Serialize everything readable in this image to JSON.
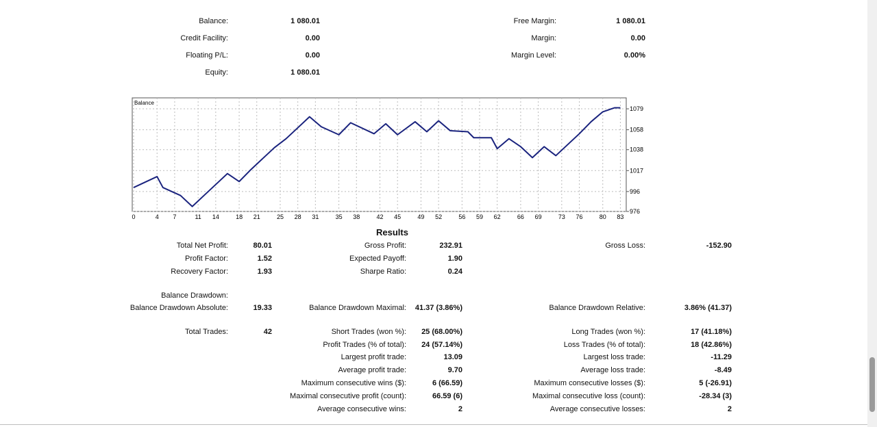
{
  "account": {
    "left": [
      {
        "label": "Balance:",
        "value": "1 080.01"
      },
      {
        "label": "Credit Facility:",
        "value": "0.00"
      },
      {
        "label": "Floating P/L:",
        "value": "0.00"
      },
      {
        "label": "Equity:",
        "value": "1 080.01"
      }
    ],
    "right": [
      {
        "label": "Free Margin:",
        "value": "1 080.01"
      },
      {
        "label": "Margin:",
        "value": "0.00"
      },
      {
        "label": "Margin Level:",
        "value": "0.00%"
      }
    ]
  },
  "chart_data": {
    "type": "line",
    "x": [
      0,
      4,
      5,
      8,
      10,
      12,
      14,
      16,
      18,
      20,
      22,
      24,
      26,
      28,
      30,
      32,
      35,
      37,
      41,
      43,
      45,
      48,
      50,
      52,
      54,
      57,
      58,
      61,
      62,
      64,
      66,
      68,
      70,
      72,
      74,
      76,
      78,
      80,
      82,
      83
    ],
    "series": [
      {
        "name": "Balance",
        "color": "#1a237e",
        "values": [
          1000,
          1011,
          1000,
          992,
          981,
          992,
          1003,
          1014,
          1006,
          1018,
          1029,
          1040,
          1049,
          1060,
          1071,
          1061,
          1053,
          1065,
          1054,
          1064,
          1053,
          1066,
          1056,
          1067,
          1057,
          1056,
          1050,
          1050,
          1039,
          1049,
          1041,
          1030,
          1041,
          1032,
          1043,
          1054,
          1066,
          1076,
          1080,
          1080
        ]
      }
    ],
    "xlim": [
      0,
      84
    ],
    "xticks": [
      0,
      4,
      7,
      11,
      14,
      18,
      21,
      25,
      28,
      31,
      35,
      38,
      42,
      45,
      49,
      52,
      56,
      59,
      62,
      66,
      69,
      73,
      76,
      80,
      83
    ],
    "ylim": [
      976,
      1090
    ],
    "yticks": [
      976,
      996,
      1017,
      1038,
      1058,
      1079
    ],
    "grid": true
  },
  "results": {
    "title": "Results",
    "rows": [
      {
        "left": {
          "label": "Total Net Profit:",
          "value": "80.01"
        },
        "middle": {
          "label": "Gross Profit:",
          "value": "232.91"
        },
        "right": {
          "label": "Gross Loss:",
          "value": "-152.90"
        }
      },
      {
        "left": {
          "label": "Profit Factor:",
          "value": "1.52"
        },
        "middle": {
          "label": "Expected Payoff:",
          "value": "1.90"
        }
      },
      {
        "left": {
          "label": "Recovery Factor:",
          "value": "1.93"
        },
        "middle": {
          "label": "Sharpe Ratio:",
          "value": "0.24"
        }
      },
      {
        "left": {
          "label": "Balance Drawdown:"
        }
      },
      {
        "left": {
          "label": "Balance Drawdown Absolute:",
          "value": "19.33"
        },
        "middle": {
          "label": "Balance Drawdown Maximal:",
          "value": "41.37 (3.86%)"
        },
        "right": {
          "label": "Balance Drawdown Relative:",
          "value": "3.86% (41.37)"
        }
      },
      {
        "left": {
          "label": "Total Trades:",
          "value": "42"
        },
        "middle": {
          "label": "Short Trades (won %):",
          "value": "25 (68.00%)"
        },
        "right": {
          "label": "Long Trades (won %):",
          "value": "17 (41.18%)"
        }
      },
      {
        "middle": {
          "label": "Profit Trades (% of total):",
          "value": "24 (57.14%)"
        },
        "right": {
          "label": "Loss Trades (% of total):",
          "value": "18 (42.86%)"
        }
      },
      {
        "middle": {
          "label": "Largest profit trade:",
          "value": "13.09"
        },
        "right": {
          "label": "Largest loss trade:",
          "value": "-11.29"
        }
      },
      {
        "middle": {
          "label": "Average profit trade:",
          "value": "9.70"
        },
        "right": {
          "label": "Average loss trade:",
          "value": "-8.49"
        }
      },
      {
        "middle": {
          "label": "Maximum consecutive wins ($):",
          "value": "6 (66.59)"
        },
        "right": {
          "label": "Maximum consecutive losses ($):",
          "value": "5 (-26.91)"
        }
      },
      {
        "middle": {
          "label": "Maximal consecutive profit (count):",
          "value": "66.59 (6)"
        },
        "right": {
          "label": "Maximal consecutive loss (count):",
          "value": "-28.34 (3)"
        }
      },
      {
        "middle": {
          "label": "Average consecutive wins:",
          "value": "2"
        },
        "right": {
          "label": "Average consecutive losses:",
          "value": "2"
        }
      }
    ]
  }
}
